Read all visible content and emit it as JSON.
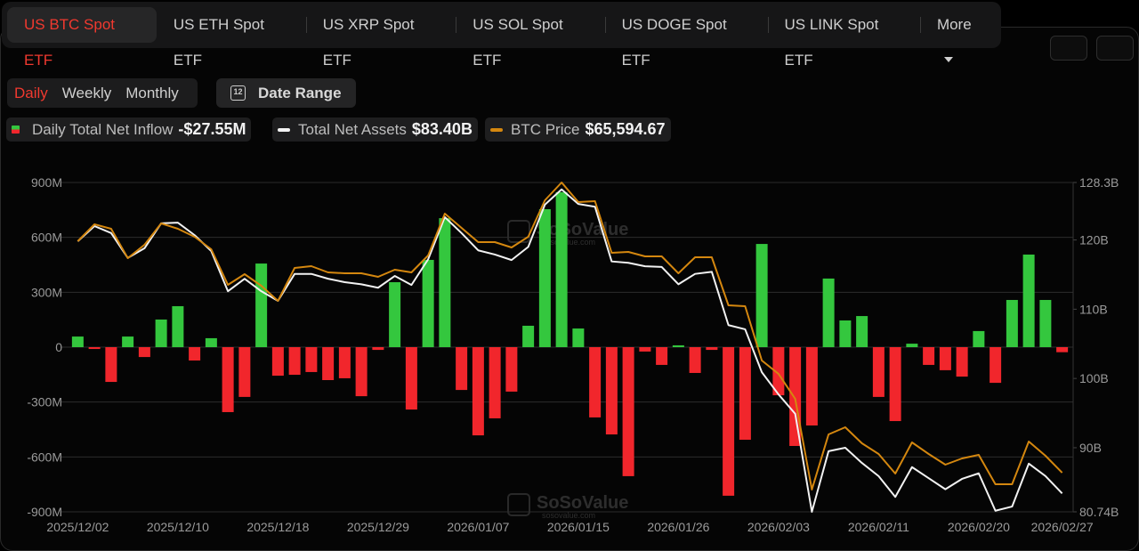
{
  "tabs": [
    "US BTC Spot ETF",
    "US ETH Spot ETF",
    "US XRP Spot ETF",
    "US SOL Spot ETF",
    "US DOGE Spot ETF",
    "US LINK Spot ETF",
    "More"
  ],
  "periods": [
    "Daily",
    "Weekly",
    "Monthly"
  ],
  "date_range": {
    "icon_text": "12",
    "label": "Date Range"
  },
  "watermarks": [
    {
      "brand": "SoSoValue",
      "site": "sosovalue.com"
    },
    {
      "brand": "SoSoValue",
      "site": "sosovalue.com"
    }
  ],
  "chart_data": {
    "type": "bar",
    "categories": [
      "2025/12/02",
      null,
      null,
      null,
      null,
      null,
      "2025/12/10",
      null,
      null,
      null,
      null,
      null,
      "2025/12/18",
      null,
      null,
      null,
      null,
      null,
      "2025/12/29",
      null,
      null,
      null,
      null,
      null,
      "2026/01/07",
      null,
      null,
      null,
      null,
      null,
      "2026/01/15",
      null,
      null,
      null,
      null,
      null,
      "2026/01/26",
      null,
      null,
      null,
      null,
      null,
      "2026/02/03",
      null,
      null,
      null,
      null,
      null,
      "2026/02/11",
      null,
      null,
      null,
      null,
      null,
      "2026/02/20",
      null,
      null,
      null,
      null,
      "2026/02/27"
    ],
    "ylim": [
      -900,
      900
    ],
    "yticks": [
      {
        "value": 900,
        "label": "900M"
      },
      {
        "value": 600,
        "label": "600M"
      },
      {
        "value": 300,
        "label": "300M"
      },
      0,
      {
        "value": -300,
        "label": "-300M"
      },
      {
        "value": -600,
        "label": "-600M"
      },
      {
        "value": -900,
        "label": "-900M"
      }
    ],
    "y2lim": [
      80.74,
      128.3
    ],
    "y2ticks": [
      {
        "value": 128.3,
        "label": "128.3B"
      },
      {
        "value": 120,
        "label": "120B"
      },
      {
        "value": 110,
        "label": "110B"
      },
      {
        "value": 100,
        "label": "100B"
      },
      {
        "value": 90,
        "label": "90B"
      },
      {
        "value": 80.74,
        "label": "80.74B"
      }
    ],
    "y3lim": [
      61200,
      98200
    ],
    "grid": true,
    "series": [
      {
        "name": "Daily Total Net Inflow",
        "type": "bar",
        "color_positive": "#34c73e",
        "color_negative": "#f1262c",
        "values": [
          58,
          -10,
          -190,
          58,
          -54,
          151,
          224,
          -73,
          49,
          -355,
          -272,
          457,
          -156,
          -151,
          -136,
          -180,
          -170,
          -268,
          -15,
          355,
          -341,
          477,
          705,
          -234,
          -482,
          -389,
          -243,
          117,
          754,
          847,
          102,
          -384,
          -477,
          -705,
          -24,
          -97,
          10,
          -141,
          -15,
          -812,
          -506,
          564,
          -263,
          -540,
          -428,
          375,
          146,
          170,
          -272,
          -404,
          19,
          -97,
          -126,
          -161,
          88,
          -195,
          258,
          506,
          258,
          -27.55
        ],
        "value_labels": [
          null,
          null,
          null,
          null,
          null,
          null,
          null,
          null,
          null,
          null,
          null,
          null,
          null,
          null,
          null,
          null,
          null,
          null,
          null,
          null,
          null,
          null,
          null,
          null,
          null,
          null,
          null,
          null,
          null,
          null,
          null,
          null,
          null,
          null,
          null,
          null,
          null,
          null,
          null,
          null,
          null,
          null,
          null,
          null,
          null,
          null,
          null,
          null,
          null,
          null,
          null,
          null,
          null,
          null,
          null,
          null,
          null,
          null,
          null,
          "-$27.55M"
        ]
      },
      {
        "name": "Total Net Assets",
        "type": "line",
        "axis": "y2",
        "color": "#f2f2f2",
        "values": [
          119.8,
          122.0,
          121.0,
          117.4,
          118.8,
          122.4,
          122.5,
          120.7,
          118.4,
          112.6,
          114.4,
          112.6,
          111.2,
          115.1,
          115.1,
          114.4,
          113.9,
          113.6,
          113.1,
          114.8,
          113.5,
          117.2,
          123.3,
          121.0,
          118.5,
          117.9,
          117.1,
          119.0,
          125.1,
          127.3,
          125.2,
          124.8,
          116.9,
          116.7,
          116.2,
          116.1,
          113.6,
          115.1,
          115.4,
          107.7,
          107.1,
          100.9,
          97.7,
          94.9,
          80.74,
          89.5,
          90.0,
          87.8,
          85.9,
          82.9,
          87.2,
          85.6,
          84.0,
          85.5,
          86.3,
          80.9,
          81.5,
          87.7,
          85.9,
          83.4
        ],
        "value_labels": [
          null,
          null,
          null,
          null,
          null,
          null,
          null,
          null,
          null,
          null,
          null,
          null,
          null,
          null,
          null,
          null,
          null,
          null,
          null,
          null,
          null,
          null,
          null,
          null,
          null,
          null,
          null,
          null,
          null,
          null,
          null,
          null,
          null,
          null,
          null,
          null,
          null,
          null,
          null,
          null,
          null,
          null,
          null,
          null,
          null,
          null,
          null,
          null,
          null,
          null,
          null,
          null,
          null,
          null,
          null,
          null,
          null,
          null,
          null,
          "$83.40B"
        ]
      },
      {
        "name": "BTC Price",
        "type": "line",
        "axis": "y3",
        "color": "#d4870f",
        "values": [
          91600,
          93500,
          93000,
          89700,
          91200,
          93600,
          93000,
          92100,
          90700,
          86700,
          87900,
          86600,
          84900,
          88600,
          88800,
          88100,
          88000,
          88000,
          87600,
          88400,
          88100,
          90000,
          94700,
          93100,
          91500,
          91500,
          90900,
          92100,
          96200,
          98200,
          96000,
          96100,
          90300,
          90400,
          89900,
          89900,
          88000,
          89800,
          89800,
          84400,
          84300,
          78200,
          76700,
          73900,
          63700,
          69900,
          70700,
          68900,
          67700,
          65500,
          69000,
          67700,
          66500,
          67200,
          67600,
          64300,
          64300,
          69100,
          67500,
          65594.67
        ],
        "value_labels": [
          null,
          null,
          null,
          null,
          null,
          null,
          null,
          null,
          null,
          null,
          null,
          null,
          null,
          null,
          null,
          null,
          null,
          null,
          null,
          null,
          null,
          null,
          null,
          null,
          null,
          null,
          null,
          null,
          null,
          null,
          null,
          null,
          null,
          null,
          null,
          null,
          null,
          null,
          null,
          null,
          null,
          null,
          null,
          null,
          null,
          null,
          null,
          null,
          null,
          null,
          null,
          null,
          null,
          null,
          null,
          null,
          null,
          null,
          null,
          "$65,594.67"
        ]
      }
    ]
  }
}
